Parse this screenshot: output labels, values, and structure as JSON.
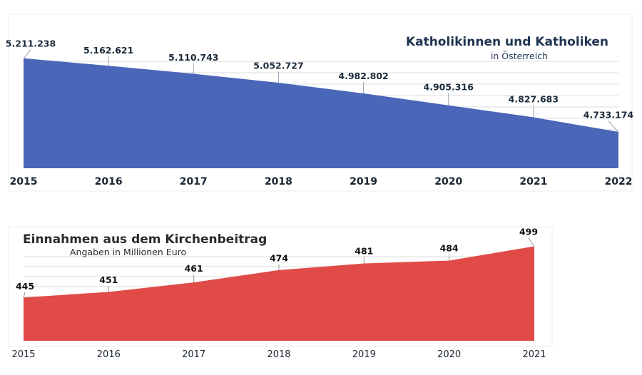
{
  "chart_data": [
    {
      "type": "area",
      "title": "Katholikinnen und Katholiken",
      "subtitle": "in Österreich",
      "categories": [
        "2015",
        "2016",
        "2017",
        "2018",
        "2019",
        "2020",
        "2021",
        "2022"
      ],
      "values": [
        5211238,
        5162621,
        5110743,
        5052727,
        4982802,
        4905316,
        4827683,
        4733174
      ],
      "value_labels": [
        "5.211.238",
        "5.162.621",
        "5.110.743",
        "5.052.727",
        "4.982.802",
        "4.905.316",
        "4.827.683",
        "4.733.174"
      ],
      "ylim": [
        4500000,
        5260000
      ],
      "grid": true,
      "color": "#4a66b8"
    },
    {
      "type": "area",
      "title": "Einnahmen aus dem Kirchenbeitrag",
      "subtitle": "Angaben in Millionen Euro",
      "categories": [
        "2015",
        "2016",
        "2017",
        "2018",
        "2019",
        "2020",
        "2021"
      ],
      "values": [
        445,
        451,
        461,
        474,
        481,
        484,
        499
      ],
      "value_labels": [
        "445",
        "451",
        "461",
        "474",
        "481",
        "484",
        "499"
      ],
      "ylim": [
        400,
        500
      ],
      "grid": true,
      "color": "#e04b47"
    }
  ]
}
